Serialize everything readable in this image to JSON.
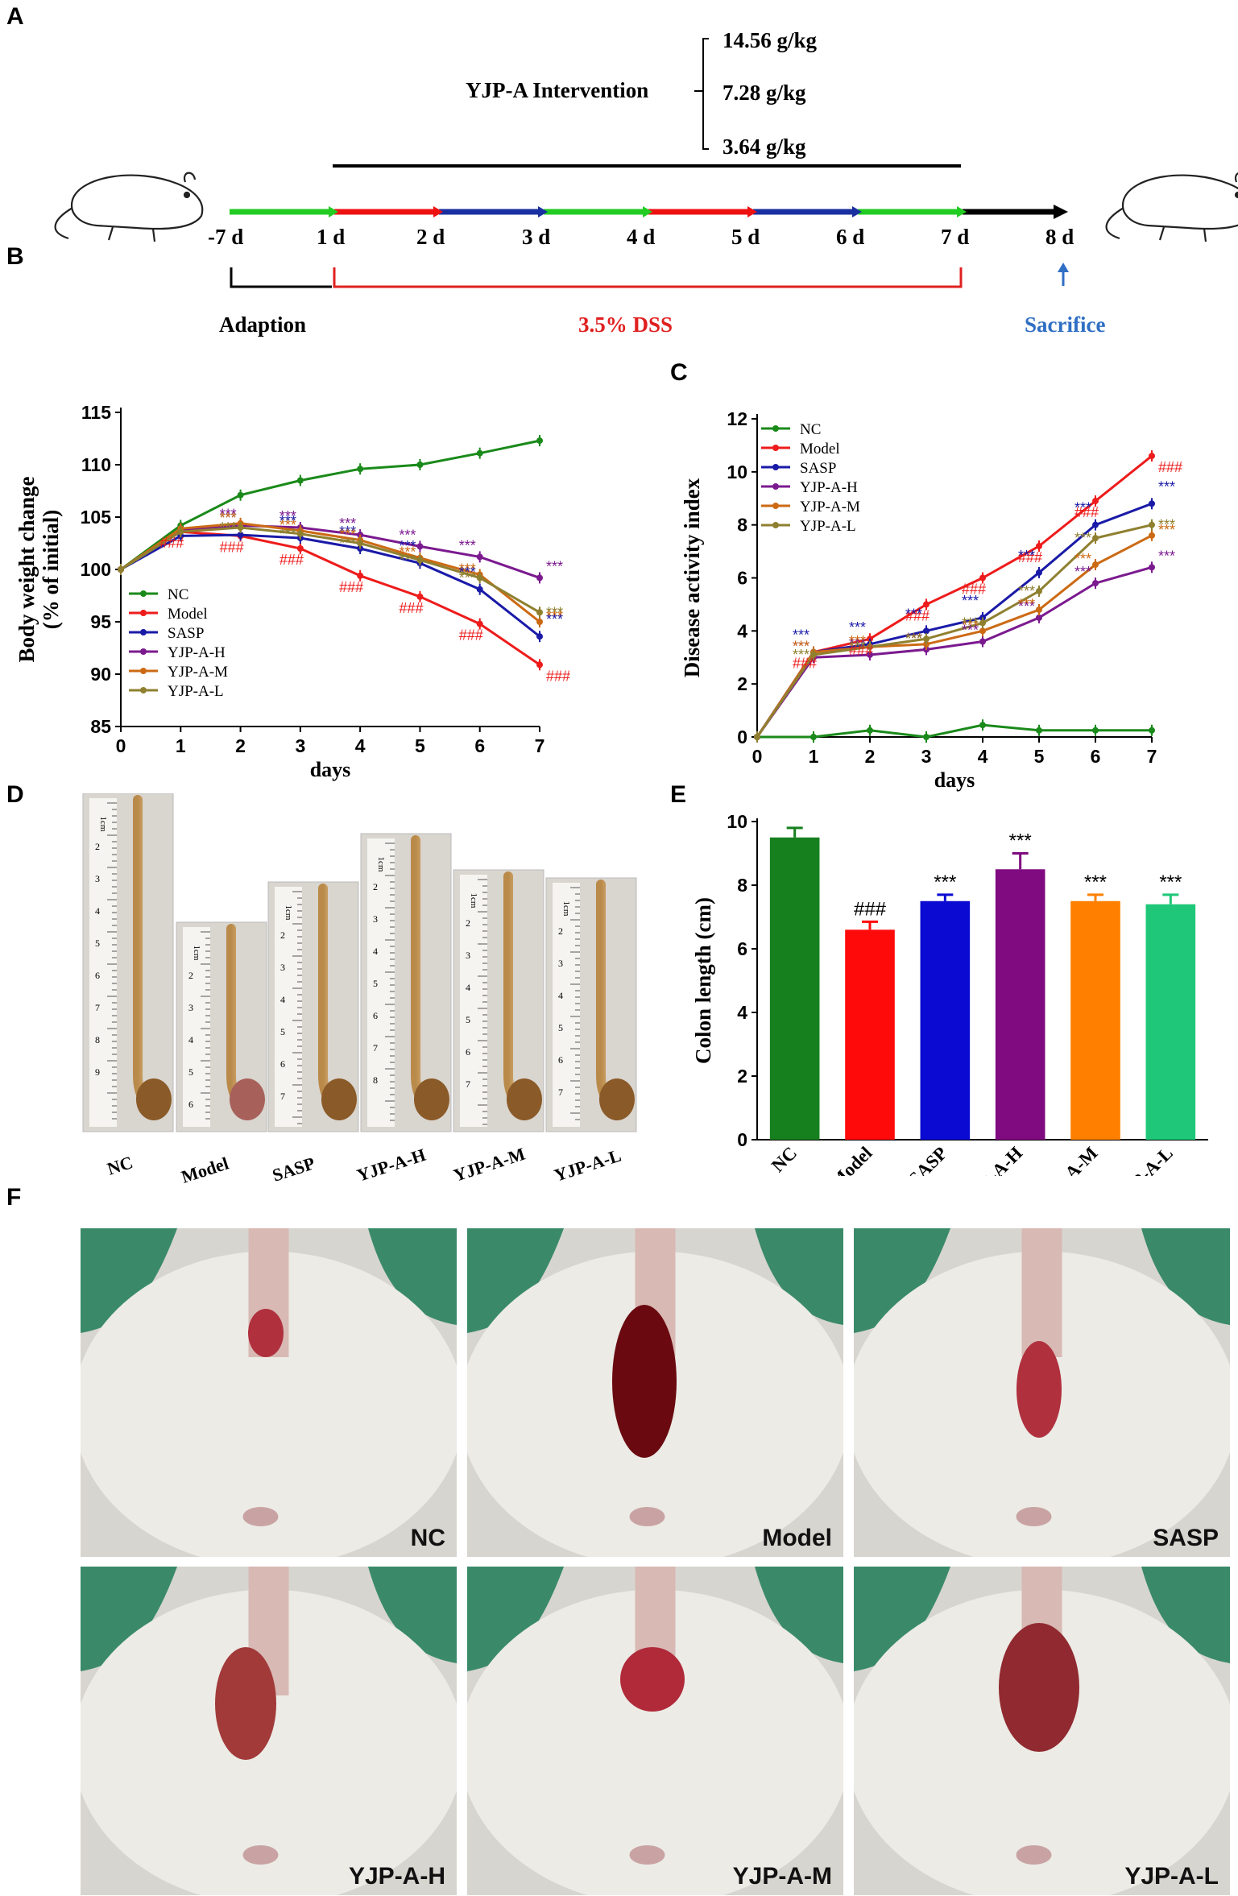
{
  "panels": {
    "A": "A",
    "B": "B",
    "C": "C",
    "D": "D",
    "E": "E",
    "F": "F"
  },
  "timeline": {
    "intervention_label": "YJP-A Intervention",
    "doses": [
      "14.56 g/kg",
      "7.28 g/kg",
      "3.64 g/kg"
    ],
    "days": [
      "-7 d",
      "1 d",
      "2 d",
      "3 d",
      "4 d",
      "5 d",
      "6 d",
      "7 d",
      "8 d"
    ],
    "adaption_label": "Adaption",
    "dss_label": "3.5%  DSS",
    "sacrifice_label": "Sacrifice",
    "colors": {
      "green": "#22cc22",
      "red": "#ee1111",
      "blue": "#1a2fa0",
      "black": "#000000",
      "dss": "#e02020",
      "sacrifice": "#2f6fc4"
    }
  },
  "chart_data": [
    {
      "id": "B",
      "type": "line",
      "xlabel": "days",
      "ylabel": "Body weight change",
      "ylabel2": "(% of initial)",
      "x": [
        0,
        1,
        2,
        3,
        4,
        5,
        6,
        7
      ],
      "xlim": [
        0,
        7
      ],
      "ylim": [
        85,
        115
      ],
      "yticks": [
        85,
        90,
        95,
        100,
        105,
        110,
        115
      ],
      "legend": "lower-left",
      "series": [
        {
          "name": "NC",
          "color": "#1a8a1a",
          "values": [
            100,
            104.2,
            107.1,
            108.5,
            109.6,
            110.0,
            111.1,
            112.3
          ]
        },
        {
          "name": "Model",
          "color": "#ee1c1c",
          "values": [
            100,
            103.6,
            103.2,
            102.0,
            99.4,
            97.4,
            94.8,
            90.9
          ]
        },
        {
          "name": "SASP",
          "color": "#1a1aa8",
          "values": [
            100,
            103.2,
            103.3,
            103.0,
            102.0,
            100.6,
            98.1,
            93.6
          ]
        },
        {
          "name": "YJP-A-H",
          "color": "#7b1a8f",
          "values": [
            100,
            103.8,
            104.2,
            104.0,
            103.3,
            102.2,
            101.2,
            99.2
          ]
        },
        {
          "name": "YJP-A-M",
          "color": "#cc6a14",
          "values": [
            100,
            103.9,
            104.4,
            103.7,
            102.8,
            101.1,
            99.5,
            95.0
          ]
        },
        {
          "name": "YJP-A-L",
          "color": "#8f8030",
          "values": [
            100,
            103.6,
            104.0,
            103.4,
            102.5,
            100.9,
            99.2,
            95.9
          ]
        }
      ],
      "marks": {
        "hash": "###",
        "star": "***"
      }
    },
    {
      "id": "C",
      "type": "line",
      "xlabel": "days",
      "ylabel": "Disease activity  index",
      "x": [
        0,
        1,
        2,
        3,
        4,
        5,
        6,
        7
      ],
      "xlim": [
        0,
        7
      ],
      "ylim": [
        0,
        12
      ],
      "yticks": [
        0,
        2,
        4,
        6,
        8,
        10,
        12
      ],
      "legend": "top-left",
      "series": [
        {
          "name": "NC",
          "color": "#1a8a1a",
          "values": [
            0,
            0,
            0.25,
            0,
            0.45,
            0.25,
            0.25,
            0.25
          ]
        },
        {
          "name": "Model",
          "color": "#ee1c1c",
          "values": [
            0,
            3.2,
            3.7,
            5.0,
            6.0,
            7.2,
            8.9,
            10.6
          ]
        },
        {
          "name": "SASP",
          "color": "#1a1aa8",
          "values": [
            0,
            3.2,
            3.5,
            4.0,
            4.5,
            6.2,
            8.0,
            8.8
          ]
        },
        {
          "name": "YJP-A-H",
          "color": "#7b1a8f",
          "values": [
            0,
            3.0,
            3.1,
            3.3,
            3.6,
            4.5,
            5.8,
            6.4
          ]
        },
        {
          "name": "YJP-A-M",
          "color": "#cc6a14",
          "values": [
            0,
            3.2,
            3.4,
            3.5,
            4.0,
            4.8,
            6.5,
            7.6
          ]
        },
        {
          "name": "YJP-A-L",
          "color": "#8f8030",
          "values": [
            0,
            3.1,
            3.4,
            3.7,
            4.3,
            5.5,
            7.5,
            8.0
          ]
        }
      ],
      "marks": {
        "hash": "###",
        "star": "***"
      }
    },
    {
      "id": "E",
      "type": "bar",
      "ylabel": "Colon length (cm)",
      "categories": [
        "NC",
        "Model",
        "SASP",
        "YJP-A-H",
        "YJP-A-M",
        "YJP-A-L"
      ],
      "values": [
        9.5,
        6.6,
        7.5,
        8.5,
        7.5,
        7.4
      ],
      "errors": [
        0.3,
        0.25,
        0.2,
        0.5,
        0.2,
        0.3
      ],
      "colors": [
        "#16801e",
        "#ff0a0a",
        "#0a0ad2",
        "#800a80",
        "#ff8000",
        "#1ec878"
      ],
      "annotations": [
        "",
        "###",
        "***",
        "***",
        "***",
        "***"
      ],
      "ylim": [
        0,
        10
      ],
      "yticks": [
        0,
        2,
        4,
        6,
        8,
        10
      ]
    }
  ],
  "colon_photos": {
    "labels": [
      "NC",
      "Model",
      "SASP",
      "YJP-A-H",
      "YJP-A-M",
      "YJP-A-L"
    ],
    "ruler_text": "1cm",
    "ruler_numbers": [
      "2",
      "3",
      "4",
      "5",
      "6",
      "7",
      "8",
      "9"
    ]
  },
  "mouse_photos": {
    "labels": [
      "NC",
      "Model",
      "SASP",
      "YJP-A-H",
      "YJP-A-M",
      "YJP-A-L"
    ]
  }
}
